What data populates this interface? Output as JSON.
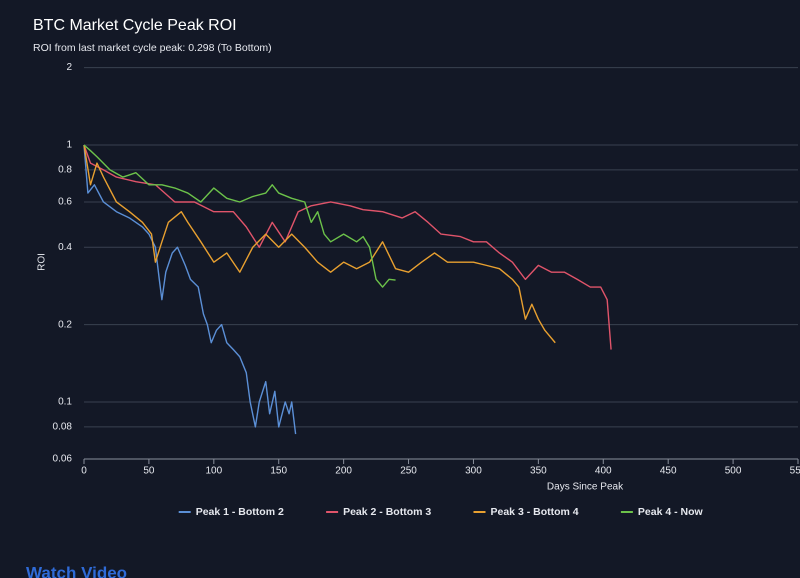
{
  "chart_data": {
    "type": "line",
    "title": "BTC Market Cycle Peak ROI",
    "subtitle": "ROI from last market cycle peak: 0.298 (To Bottom)",
    "xlabel": "Days Since Peak",
    "ylabel": "ROI",
    "log_y": true,
    "grid": true,
    "legend": "bottom",
    "xlim": [
      0,
      550
    ],
    "xticks": [
      0,
      50,
      100,
      150,
      200,
      250,
      300,
      350,
      400,
      450,
      500,
      550
    ],
    "ylim": [
      0.06,
      2
    ],
    "yticks": [
      0.06,
      0.08,
      0.1,
      0.2,
      0.4,
      0.6,
      0.8,
      1,
      2
    ],
    "series": [
      {
        "name": "Peak 1 - Bottom 2",
        "color": "#5b8fd6",
        "x": [
          0,
          3,
          8,
          15,
          25,
          35,
          45,
          50,
          55,
          58,
          60,
          63,
          68,
          72,
          78,
          82,
          88,
          92,
          95,
          98,
          102,
          106,
          110,
          115,
          120,
          125,
          128,
          132,
          135,
          140,
          143,
          147,
          150,
          155,
          158,
          160,
          163
        ],
        "values": [
          1,
          0.65,
          0.7,
          0.6,
          0.55,
          0.52,
          0.48,
          0.45,
          0.4,
          0.3,
          0.25,
          0.32,
          0.38,
          0.4,
          0.34,
          0.3,
          0.28,
          0.22,
          0.2,
          0.17,
          0.19,
          0.2,
          0.17,
          0.16,
          0.15,
          0.13,
          0.1,
          0.08,
          0.1,
          0.12,
          0.09,
          0.11,
          0.08,
          0.1,
          0.09,
          0.1,
          0.075
        ]
      },
      {
        "name": "Peak 2 - Bottom 3",
        "color": "#e0546a",
        "x": [
          0,
          5,
          15,
          25,
          40,
          55,
          70,
          85,
          100,
          115,
          125,
          135,
          145,
          155,
          165,
          175,
          190,
          205,
          215,
          230,
          245,
          255,
          265,
          275,
          290,
          300,
          310,
          320,
          330,
          340,
          350,
          360,
          370,
          380,
          390,
          398,
          403,
          406
        ],
        "values": [
          1,
          0.85,
          0.8,
          0.75,
          0.72,
          0.7,
          0.6,
          0.6,
          0.55,
          0.55,
          0.48,
          0.4,
          0.5,
          0.42,
          0.55,
          0.58,
          0.6,
          0.58,
          0.56,
          0.55,
          0.52,
          0.55,
          0.5,
          0.45,
          0.44,
          0.42,
          0.42,
          0.38,
          0.35,
          0.3,
          0.34,
          0.32,
          0.32,
          0.3,
          0.28,
          0.28,
          0.25,
          0.16
        ]
      },
      {
        "name": "Peak 3 - Bottom 4",
        "color": "#e8a030",
        "x": [
          0,
          5,
          10,
          15,
          25,
          35,
          45,
          52,
          55,
          60,
          65,
          75,
          80,
          90,
          100,
          110,
          120,
          130,
          140,
          150,
          160,
          170,
          180,
          190,
          200,
          210,
          220,
          230,
          240,
          250,
          260,
          270,
          280,
          290,
          300,
          310,
          320,
          330,
          335,
          340,
          345,
          350,
          355,
          363
        ],
        "values": [
          1,
          0.7,
          0.85,
          0.75,
          0.6,
          0.55,
          0.5,
          0.45,
          0.35,
          0.42,
          0.5,
          0.55,
          0.5,
          0.42,
          0.35,
          0.38,
          0.32,
          0.4,
          0.45,
          0.4,
          0.45,
          0.4,
          0.35,
          0.32,
          0.35,
          0.33,
          0.35,
          0.42,
          0.33,
          0.32,
          0.35,
          0.38,
          0.35,
          0.35,
          0.35,
          0.34,
          0.33,
          0.3,
          0.28,
          0.21,
          0.24,
          0.21,
          0.19,
          0.17
        ]
      },
      {
        "name": "Peak 4 - Now",
        "color": "#6cc24a",
        "x": [
          0,
          5,
          10,
          20,
          30,
          40,
          50,
          60,
          70,
          80,
          90,
          100,
          110,
          120,
          130,
          140,
          145,
          150,
          160,
          170,
          175,
          180,
          185,
          190,
          200,
          210,
          215,
          220,
          225,
          230,
          235,
          240
        ],
        "values": [
          1,
          0.95,
          0.9,
          0.8,
          0.75,
          0.78,
          0.7,
          0.7,
          0.68,
          0.65,
          0.6,
          0.68,
          0.62,
          0.6,
          0.63,
          0.65,
          0.7,
          0.65,
          0.62,
          0.6,
          0.5,
          0.55,
          0.45,
          0.42,
          0.45,
          0.42,
          0.44,
          0.4,
          0.3,
          0.28,
          0.3,
          0.298
        ]
      }
    ]
  },
  "link_text": "Watch Video"
}
